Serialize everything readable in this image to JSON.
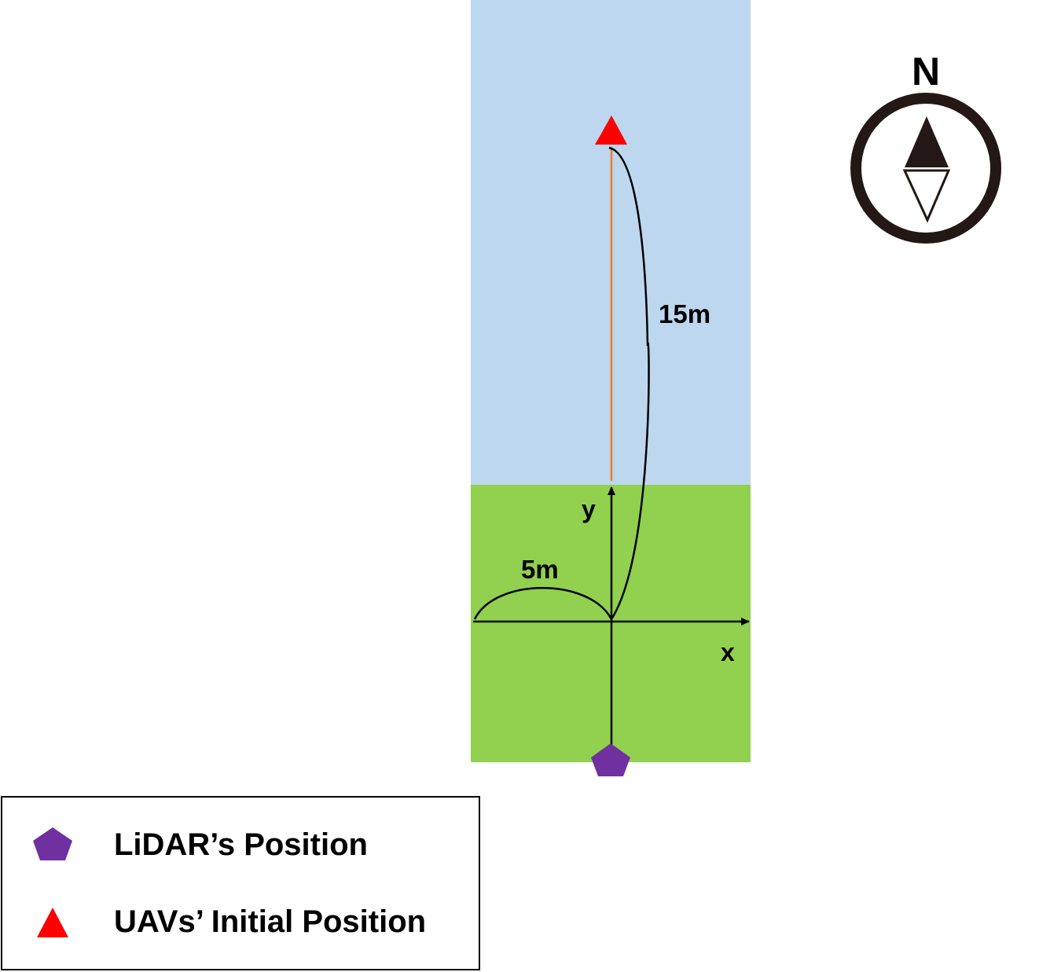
{
  "colors": {
    "water": "#BDD7EE",
    "grass": "#92D050",
    "uav_marker": "#FF0000",
    "lidar_marker": "#7030A0",
    "flight_line": "#ED7D31",
    "axes": "#000000",
    "compass": "#231815"
  },
  "labels": {
    "x_axis": "x",
    "y_axis": "y",
    "distance_vertical": "15m",
    "distance_horizontal": "5m",
    "compass_north": "N"
  },
  "legend": {
    "items": [
      {
        "icon": "purple-pentagon-icon",
        "label": "LiDAR’s Position"
      },
      {
        "icon": "red-triangle-icon",
        "label": "UAVs’ Initial Position"
      }
    ]
  }
}
